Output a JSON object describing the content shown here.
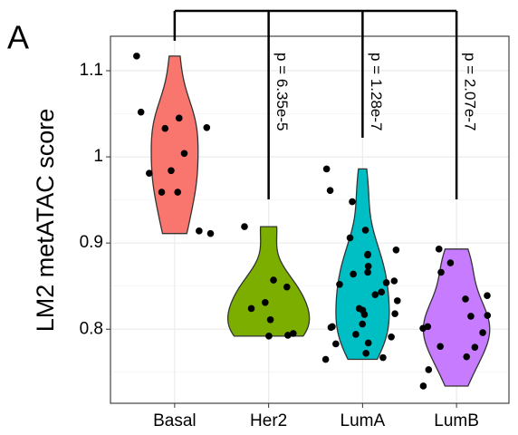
{
  "chart_data": {
    "type": "violin",
    "panel_label": "A",
    "y_label": "LM2 metATAC score",
    "categories": [
      "Basal",
      "Her2",
      "LumA",
      "LumB"
    ],
    "colors": [
      "#f8766d",
      "#7cae00",
      "#00bfc4",
      "#c77cff"
    ],
    "values": [
      [
        1.117,
        1.034,
        1.052,
        1.045,
        1.033,
        0.984,
        1.004,
        0.981,
        0.959,
        0.959,
        0.911,
        0.914
      ],
      [
        0.919,
        0.849,
        0.857,
        0.831,
        0.824,
        0.795,
        0.793,
        0.792,
        0.811
      ],
      [
        0.986,
        0.961,
        0.948,
        0.906,
        0.892,
        0.915,
        0.887,
        0.886,
        0.873,
        0.866,
        0.864,
        0.856,
        0.854,
        0.852,
        0.843,
        0.84,
        0.833,
        0.824,
        0.818,
        0.822,
        0.817,
        0.806,
        0.803,
        0.802,
        0.794,
        0.791,
        0.784,
        0.783,
        0.772,
        0.767,
        0.765
      ],
      [
        0.893,
        0.877,
        0.866,
        0.839,
        0.835,
        0.816,
        0.815,
        0.803,
        0.796,
        0.801,
        0.78,
        0.779,
        0.768,
        0.753,
        0.734
      ]
    ],
    "comparisons": [
      {
        "category": 1,
        "label": "p = 6.35e-5"
      },
      {
        "category": 2,
        "label": "p = 1.28e-7"
      },
      {
        "category": 3,
        "label": "p = 2.07e-7"
      }
    ],
    "ylim": [
      0.714,
      1.14
    ],
    "yticks": [
      0.8,
      0.9,
      1.0,
      1.1
    ],
    "grid": true
  }
}
